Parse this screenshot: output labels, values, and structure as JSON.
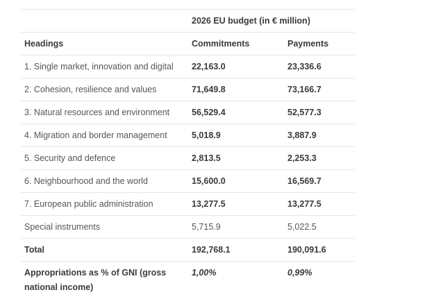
{
  "table": {
    "caption_header": "2026 EU budget (in € million)",
    "columns": [
      "Headings",
      "Commitments",
      "Payments"
    ],
    "rows": [
      {
        "heading": "1. Single market, innovation and digital",
        "commitments": "22,163.0",
        "payments": "23,336.6"
      },
      {
        "heading": "2. Cohesion, resilience and values",
        "commitments": "71,649.8",
        "payments": "73,166.7"
      },
      {
        "heading": "3. Natural resources and environment",
        "commitments": "56,529.4",
        "payments": "52,577.3"
      },
      {
        "heading": "4. Migration and border management",
        "commitments": "5,018.9",
        "payments": "3,887.9"
      },
      {
        "heading": "5. Security and defence",
        "commitments": "2,813.5",
        "payments": "2,253.3"
      },
      {
        "heading": "6. Neighbourhood and the world",
        "commitments": "15,600.0",
        "payments": "16,569.7"
      },
      {
        "heading": "7. European public administration",
        "commitments": "13,277.5",
        "payments": "13,277.5"
      }
    ],
    "special": {
      "heading": "Special instruments",
      "commitments": "5,715.9",
      "payments": "5,022.5"
    },
    "total": {
      "heading": "Total",
      "commitments": "192,768.1",
      "payments": "190,091.6"
    },
    "gni": {
      "heading": "Appropriations as % of GNI (gross national income)",
      "commitments": "1,00%",
      "payments": "0,99%"
    }
  }
}
